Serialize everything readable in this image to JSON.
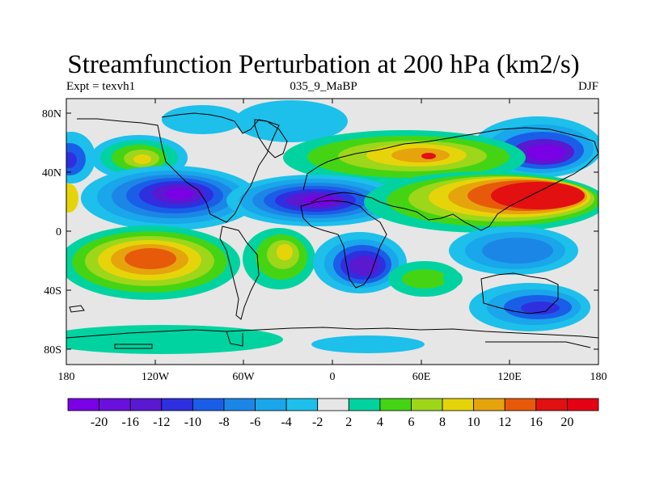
{
  "title": "Streamfunction Perturbation at 200 hPa (km2/s)",
  "subtitle_left": "Expt = texvh1",
  "subtitle_center": "035_9_MaBP",
  "subtitle_right": "DJF",
  "x_tick_labels": [
    "180",
    "120W",
    "60W",
    "0",
    "60E",
    "120E",
    "180"
  ],
  "y_tick_labels": [
    "80N",
    "40N",
    "0",
    "40S",
    "80S"
  ],
  "colorbar_labels": [
    "-20",
    "-16",
    "-12",
    "-10",
    "-8",
    "-6",
    "-4",
    "-2",
    "2",
    "4",
    "6",
    "8",
    "10",
    "12",
    "16",
    "20"
  ],
  "colorbar_colors": [
    "#7a00e6",
    "#6a10dc",
    "#5a18d0",
    "#2f2fe0",
    "#1a5ee8",
    "#1c86e6",
    "#1aa6ea",
    "#1cc0ea",
    "#e6e6e6",
    "#00d3a0",
    "#44d414",
    "#9ed61a",
    "#e6d40a",
    "#e6a40c",
    "#e65a0a",
    "#e21010",
    "#e60014"
  ],
  "chart_data": {
    "type": "heatmap",
    "x_range": [
      -180,
      180
    ],
    "y_range": [
      -90,
      90
    ],
    "levels": [
      -20,
      -16,
      -12,
      -10,
      -8,
      -6,
      -4,
      -2,
      2,
      4,
      6,
      8,
      10,
      12,
      16,
      20
    ]
  }
}
